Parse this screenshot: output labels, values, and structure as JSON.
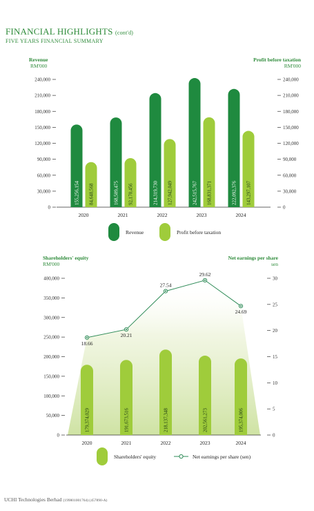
{
  "header": {
    "title": "FINANCIAL HIGHLIGHTS",
    "title_suffix": "(cont'd)",
    "subtitle": "FIVE YEARS FINANCIAL SUMMARY"
  },
  "colors": {
    "dark_green": "#1f8a3f",
    "light_green": "#9fcc3b",
    "line_green": "#2e8b57"
  },
  "chart_data": [
    {
      "type": "bar",
      "categories": [
        "2020",
        "2021",
        "2022",
        "2023",
        "2024"
      ],
      "series": [
        {
          "name": "Revenue",
          "values": [
            155256154,
            168509475,
            214319730,
            242515767,
            222092376
          ],
          "labels": [
            "155,256,154",
            "168,509,475",
            "214,319,730",
            "242,515,767",
            "222,092,376"
          ]
        },
        {
          "name": "Profit before taxation",
          "values": [
            84648568,
            92170456,
            127942049,
            168831371,
            143297107
          ],
          "labels": [
            "84,648,568",
            "92,170,456",
            "127,942,049",
            "168,831,371",
            "143,297,107"
          ]
        }
      ],
      "left_axis": {
        "title": "Revenue",
        "unit": "RM'000",
        "ticks": [
          "0",
          "30,000",
          "60,000",
          "90,000",
          "120,000",
          "150,000",
          "180,000",
          "210,000",
          "240,000"
        ],
        "max": 240000
      },
      "right_axis": {
        "title": "Profit before taxation",
        "unit": "RM'000",
        "ticks": [
          "0",
          "30,000",
          "60,000",
          "90,000",
          "120,000",
          "150,000",
          "180,000",
          "210,000",
          "240,000"
        ],
        "max": 240000
      },
      "legend": [
        "Revenue",
        "Profit before taxation"
      ],
      "grid": false
    },
    {
      "type": "bar",
      "categories": [
        "2020",
        "2021",
        "2022",
        "2023",
        "2024"
      ],
      "series": [
        {
          "name": "Shareholders' equity",
          "values": [
            179374029,
            191673516,
            218137348,
            202561273,
            195374006
          ],
          "labels": [
            "179,374,029",
            "191,673,516",
            "218,137,348",
            "202,561,273",
            "195,374,006"
          ]
        },
        {
          "name": "Net earnings per share (sen)",
          "type": "line",
          "values": [
            18.66,
            20.21,
            27.54,
            29.62,
            24.69
          ],
          "labels": [
            "18.66",
            "20.21",
            "27.54",
            "29.62",
            "24.69"
          ]
        }
      ],
      "left_axis": {
        "title": "Shareholders' equity",
        "unit": "RM'000",
        "ticks": [
          "0",
          "50,000",
          "100,000",
          "150,000",
          "200,000",
          "250,000",
          "300,000",
          "350,000",
          "400,000"
        ],
        "max": 400000
      },
      "right_axis": {
        "title": "Net earnings per share",
        "unit": "sen",
        "ticks": [
          "0",
          "5",
          "10",
          "15",
          "20",
          "25",
          "30"
        ],
        "max": 30
      },
      "legend": [
        "Shareholders' equity",
        "Net earnings per share (sen)"
      ],
      "grid": false
    }
  ],
  "footer": {
    "company": "UCHI Technologies Berhad",
    "registration": "(199801001764) (457890-A)"
  }
}
